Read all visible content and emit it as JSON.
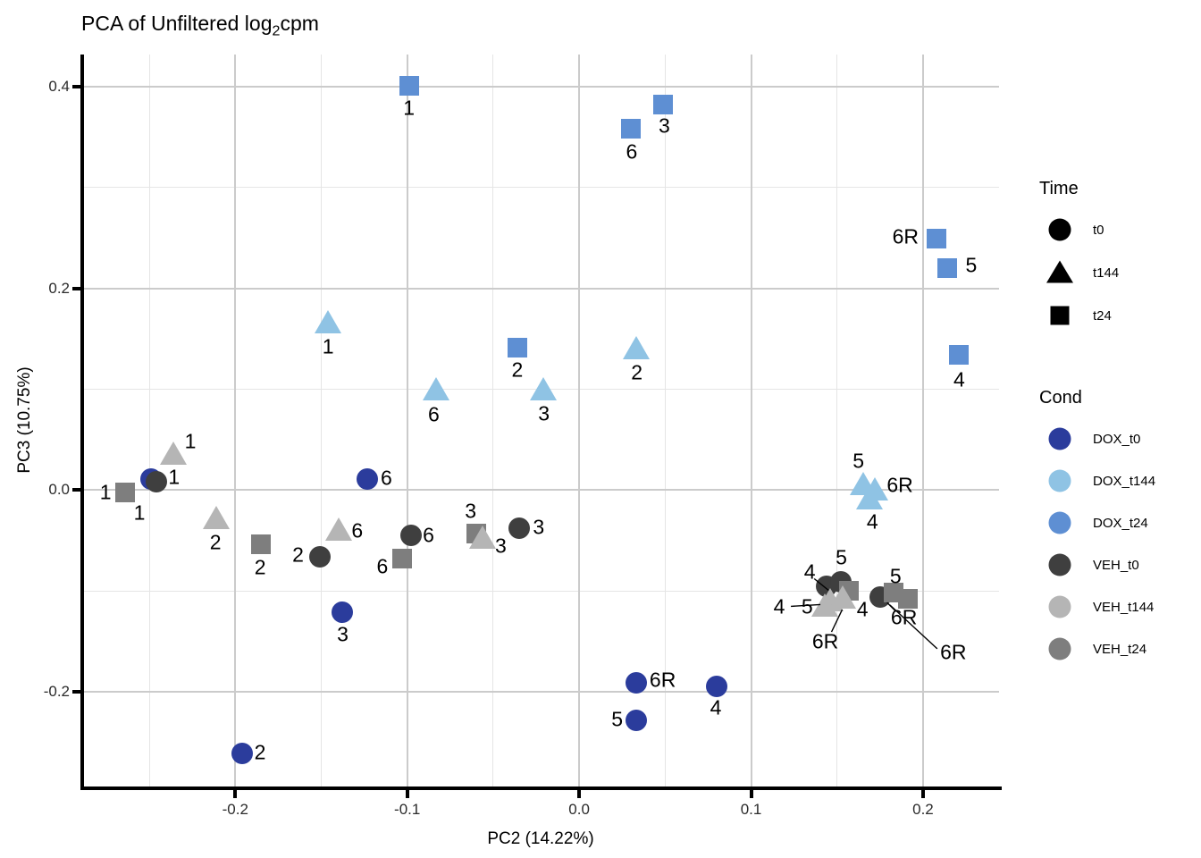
{
  "title": {
    "prefix": "PCA of Unfiltered log",
    "sub": "2",
    "suffix": "cpm"
  },
  "legend": {
    "time": {
      "title": "Time",
      "items": [
        {
          "label": "t0",
          "shape": "circle",
          "color": "#000000"
        },
        {
          "label": "t144",
          "shape": "triangle",
          "color": "#000000"
        },
        {
          "label": "t24",
          "shape": "square",
          "color": "#000000"
        }
      ]
    },
    "cond": {
      "title": "Cond",
      "items": [
        {
          "label": "DOX_t0",
          "color": "#2B3C9C"
        },
        {
          "label": "DOX_t144",
          "color": "#8FC3E4"
        },
        {
          "label": "DOX_t24",
          "color": "#5E8FD3"
        },
        {
          "label": "VEH_t0",
          "color": "#3F3F3F"
        },
        {
          "label": "VEH_t144",
          "color": "#B5B5B5"
        },
        {
          "label": "VEH_t24",
          "color": "#7E7E7E"
        }
      ]
    }
  },
  "chart_data": {
    "type": "scatter",
    "title": "PCA of Unfiltered log2cpm",
    "xlabel": "PC2 (14.22%)",
    "ylabel": "PC3 (10.75%)",
    "xlim": [
      -0.2885,
      0.2442
    ],
    "ylim": [
      -0.294,
      0.432
    ],
    "x_ticks": [
      -0.2,
      -0.1,
      0.0,
      0.1,
      0.2
    ],
    "x_tick_labels": [
      "-0.2",
      "-0.1",
      "0.0",
      "0.1",
      "0.2"
    ],
    "x_minor_ticks": [
      -0.25,
      -0.15,
      -0.05,
      0.05,
      0.15
    ],
    "y_ticks": [
      0.4,
      0.2,
      0.0,
      -0.2
    ],
    "y_tick_labels": [
      "0.4",
      "0.2",
      "0.0",
      "-0.2"
    ],
    "y_minor_ticks": [
      0.3,
      0.1,
      -0.1
    ],
    "grid": {
      "major_color": "#CBCBCB",
      "minor_color": "#E5E5E5",
      "grid_on": true
    },
    "legend_position": "right",
    "shape_by": "Time",
    "color_by": "Cond",
    "series": [
      {
        "name": "DOX_t0",
        "time": "t0",
        "shape": "circle",
        "color": "#2B3C9C",
        "points": [
          {
            "label": "1",
            "x": -0.249,
            "y": 0.011,
            "dx": -13,
            "dy": 38
          },
          {
            "label": "2",
            "x": -0.196,
            "y": -0.261,
            "dx": 20,
            "dy": -1
          },
          {
            "label": "3",
            "x": -0.138,
            "y": -0.121,
            "dx": 1,
            "dy": 25
          },
          {
            "label": "4",
            "x": 0.08,
            "y": -0.195,
            "dx": -1,
            "dy": 24
          },
          {
            "label": "5",
            "x": 0.033,
            "y": -0.228,
            "dx": -21,
            "dy": -1
          },
          {
            "label": "6",
            "x": -0.123,
            "y": 0.011,
            "dx": 21,
            "dy": -1
          },
          {
            "label": "6R",
            "x": 0.033,
            "y": -0.191,
            "dx": 30,
            "dy": -3
          }
        ]
      },
      {
        "name": "DOX_t144",
        "time": "t144",
        "shape": "triangle",
        "color": "#8FC3E4",
        "points": [
          {
            "label": "1",
            "x": -0.146,
            "y": 0.166,
            "dx": 0,
            "dy": 27
          },
          {
            "label": "2",
            "x": 0.033,
            "y": 0.14,
            "dx": 1,
            "dy": 27
          },
          {
            "label": "3",
            "x": -0.021,
            "y": 0.1,
            "dx": 1,
            "dy": 27
          },
          {
            "label": "4",
            "x": 0.169,
            "y": -0.009,
            "dx": 3,
            "dy": 26
          },
          {
            "label": "5",
            "x": 0.165,
            "y": 0.006,
            "dx": -5,
            "dy": -26
          },
          {
            "label": "6",
            "x": -0.083,
            "y": 0.1,
            "dx": -3,
            "dy": 28
          },
          {
            "label": "6R",
            "x": 0.172,
            "y": 0.0,
            "dx": 28,
            "dy": -5
          }
        ]
      },
      {
        "name": "DOX_t24",
        "time": "t24",
        "shape": "square",
        "color": "#5E8FD3",
        "points": [
          {
            "label": "1",
            "x": -0.099,
            "y": 0.401,
            "dx": 0,
            "dy": 25
          },
          {
            "label": "2",
            "x": -0.036,
            "y": 0.141,
            "dx": 0,
            "dy": 25
          },
          {
            "label": "3",
            "x": 0.049,
            "y": 0.382,
            "dx": 1,
            "dy": 24
          },
          {
            "label": "4",
            "x": 0.221,
            "y": 0.134,
            "dx": 0,
            "dy": 28
          },
          {
            "label": "5",
            "x": 0.214,
            "y": 0.22,
            "dx": 27,
            "dy": -3
          },
          {
            "label": "6",
            "x": 0.03,
            "y": 0.358,
            "dx": 1,
            "dy": 26
          },
          {
            "label": "6R",
            "x": 0.208,
            "y": 0.249,
            "dx": -35,
            "dy": -2
          }
        ]
      },
      {
        "name": "VEH_t0",
        "time": "t0",
        "shape": "circle",
        "color": "#3F3F3F",
        "points": [
          {
            "label": "1",
            "x": -0.246,
            "y": 0.008,
            "dx": 20,
            "dy": -5
          },
          {
            "label": "2",
            "x": -0.151,
            "y": -0.066,
            "dx": -24,
            "dy": -2
          },
          {
            "label": "3",
            "x": -0.035,
            "y": -0.038,
            "dx": 22,
            "dy": -1
          },
          {
            "label": "4",
            "x": 0.144,
            "y": -0.095,
            "dx": -19,
            "dy": -16,
            "leader": [
              -14,
              -8,
              2,
              5
            ]
          },
          {
            "label": "5",
            "x": 0.152,
            "y": -0.091,
            "dx": 1,
            "dy": -27
          },
          {
            "label": "6",
            "x": -0.098,
            "y": -0.045,
            "dx": 20,
            "dy": 0
          },
          {
            "label": "6R",
            "x": 0.175,
            "y": -0.106,
            "dx": 82,
            "dy": 62,
            "leader": [
              64,
              58,
              11,
              9
            ]
          }
        ]
      },
      {
        "name": "VEH_t144",
        "time": "t144",
        "shape": "triangle",
        "color": "#B5B5B5",
        "points": [
          {
            "label": "1",
            "x": -0.236,
            "y": 0.036,
            "dx": 19,
            "dy": -14
          },
          {
            "label": "2",
            "x": -0.211,
            "y": -0.028,
            "dx": -1,
            "dy": 27
          },
          {
            "label": "3",
            "x": -0.056,
            "y": -0.048,
            "dx": 20,
            "dy": 9
          },
          {
            "label": "4",
            "x": 0.146,
            "y": -0.11,
            "dx": -57,
            "dy": 7,
            "leader": [
              -44,
              6,
              -11,
              4
            ]
          },
          {
            "label": "5",
            "x": 0.143,
            "y": -0.115,
            "dx": -20,
            "dy": 1
          },
          {
            "label": "6",
            "x": -0.14,
            "y": -0.04,
            "dx": 21,
            "dy": 1
          },
          {
            "label": "6R",
            "x": 0.153,
            "y": -0.107,
            "dx": -19,
            "dy": 49,
            "leader": [
              -12,
              38,
              0,
              13
            ]
          }
        ]
      },
      {
        "name": "VEH_t24",
        "time": "t24",
        "shape": "square",
        "color": "#7E7E7E",
        "points": [
          {
            "label": "1",
            "x": -0.264,
            "y": -0.002,
            "dx": -22,
            "dy": 0
          },
          {
            "label": "2",
            "x": -0.185,
            "y": -0.054,
            "dx": -1,
            "dy": 26
          },
          {
            "label": "3",
            "x": -0.06,
            "y": -0.043,
            "dx": -6,
            "dy": -25
          },
          {
            "label": "4",
            "x": 0.157,
            "y": -0.1,
            "dx": 15,
            "dy": 21
          },
          {
            "label": "5",
            "x": 0.183,
            "y": -0.102,
            "dx": 2,
            "dy": -18
          },
          {
            "label": "6",
            "x": -0.103,
            "y": -0.068,
            "dx": -22,
            "dy": 9
          },
          {
            "label": "6R",
            "x": 0.191,
            "y": -0.108,
            "dx": -4,
            "dy": 21,
            "leader": [
              -14,
              13,
              -23,
              4
            ]
          }
        ]
      }
    ]
  }
}
